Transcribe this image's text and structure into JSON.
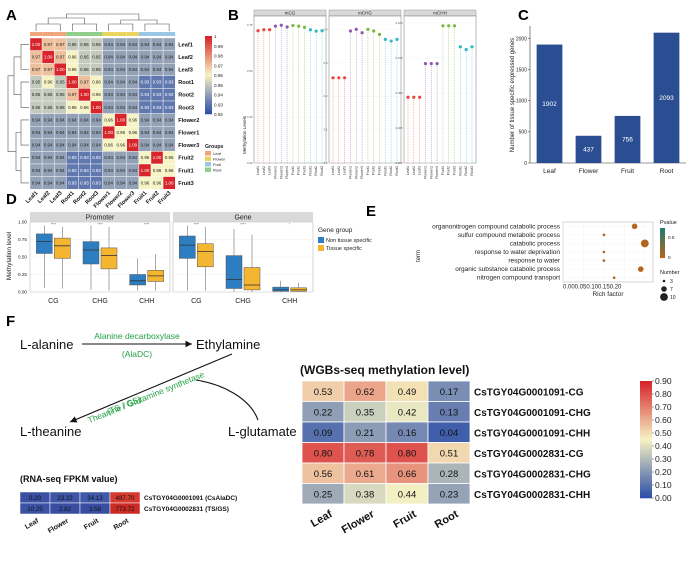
{
  "colors": {
    "heat_low": "#2f4fa8",
    "heat_mid": "#f6f3c4",
    "heat_high": "#d7252b",
    "bar_blue": "#2b4e93",
    "box_blue": "#2d7ec1",
    "box_orange": "#f4b530",
    "strip_grey": "#d9d9d9",
    "mcg": "#e8453c",
    "mchg": "#9b59b6",
    "mchh": "#2eb8c8",
    "green_text": "#22a044"
  },
  "panels": {
    "A": "A",
    "B": "B",
    "C": "C",
    "D": "D",
    "E": "E",
    "F": "F"
  },
  "chart_data": [
    {
      "id": "A",
      "type": "heatmap",
      "title": "",
      "rows": [
        "Leaf1",
        "Leaf2",
        "Leaf3",
        "Root1",
        "Root2",
        "Root3",
        "Flower2",
        "Flower1",
        "Flower3",
        "Fruit2",
        "Fruit1",
        "Fruit3"
      ],
      "cols": [
        "Leaf1",
        "Leaf2",
        "Leaf3",
        "Root1",
        "Root2",
        "Root3",
        "Flower1",
        "Flower2",
        "Flower3",
        "Fruit1",
        "Fruit2",
        "Fruit3"
      ],
      "col_groups": [
        "Leaf",
        "Leaf",
        "Leaf",
        "Root",
        "Root",
        "Root",
        "Flower",
        "Flower",
        "Flower",
        "Fruit",
        "Fruit",
        "Fruit"
      ],
      "values": [
        [
          1.0,
          0.97,
          0.97,
          0.95,
          0.95,
          0.95,
          0.94,
          0.94,
          0.94,
          0.94,
          0.94,
          0.94
        ],
        [
          0.97,
          1.0,
          0.97,
          0.96,
          0.95,
          0.95,
          0.94,
          0.94,
          0.94,
          0.94,
          0.94,
          0.94
        ],
        [
          0.97,
          0.97,
          1.0,
          0.96,
          0.95,
          0.95,
          0.94,
          0.94,
          0.94,
          0.94,
          0.94,
          0.94
        ],
        [
          0.95,
          0.96,
          0.95,
          1.0,
          0.97,
          0.96,
          0.94,
          0.94,
          0.94,
          0.93,
          0.93,
          0.93
        ],
        [
          0.95,
          0.95,
          0.95,
          0.97,
          1.0,
          0.96,
          0.94,
          0.94,
          0.94,
          0.93,
          0.93,
          0.93
        ],
        [
          0.95,
          0.95,
          0.95,
          0.96,
          0.96,
          1.0,
          0.94,
          0.94,
          0.94,
          0.93,
          0.93,
          0.93
        ],
        [
          0.94,
          0.94,
          0.94,
          0.94,
          0.94,
          0.94,
          0.96,
          1.0,
          0.96,
          0.94,
          0.94,
          0.94
        ],
        [
          0.94,
          0.94,
          0.94,
          0.94,
          0.94,
          0.94,
          1.0,
          0.96,
          0.96,
          0.94,
          0.94,
          0.94
        ],
        [
          0.94,
          0.94,
          0.94,
          0.94,
          0.94,
          0.94,
          0.96,
          0.96,
          1.0,
          0.94,
          0.94,
          0.94
        ],
        [
          0.94,
          0.94,
          0.94,
          0.93,
          0.93,
          0.93,
          0.94,
          0.94,
          0.94,
          0.96,
          1.0,
          0.96
        ],
        [
          0.94,
          0.94,
          0.94,
          0.93,
          0.93,
          0.93,
          0.94,
          0.94,
          0.94,
          1.0,
          0.96,
          0.96
        ],
        [
          0.94,
          0.94,
          0.94,
          0.93,
          0.93,
          0.93,
          0.94,
          0.94,
          0.94,
          0.96,
          0.96,
          1.0
        ]
      ],
      "colorbar_ticks": [
        "1",
        "0.99",
        "0.98",
        "0.97",
        "0.96",
        "0.95",
        "0.94",
        "0.93",
        "0.92"
      ],
      "colorbar_range": [
        0.92,
        1.0
      ],
      "legend_title": "Groups",
      "legend_items": [
        "Leaf",
        "Flower",
        "Fruit",
        "Root"
      ],
      "group_colors": {
        "Leaf": "#f0a57c",
        "Flower": "#e9d45d",
        "Fruit": "#9bc7e6",
        "Root": "#8fcf8a"
      }
    },
    {
      "id": "B",
      "type": "scatter",
      "ylabel": "Methylation Levels",
      "facets": [
        "mCG",
        "mCHG",
        "mCHH"
      ],
      "samples": [
        "Leaf1",
        "Leaf2",
        "Leaf3",
        "Flower1",
        "Flower2",
        "Flower3",
        "Fruit1",
        "Fruit2",
        "Fruit3",
        "Root1",
        "Root2",
        "Root3"
      ],
      "series": [
        {
          "name": "mCG",
          "values": [
            0.72,
            0.725,
            0.725,
            0.745,
            0.75,
            0.74,
            0.748,
            0.745,
            0.738,
            0.725,
            0.718,
            0.72
          ],
          "ylim": [
            0,
            0.8
          ],
          "yticks": [
            "0.00",
            "0.25",
            "0.50",
            "0.75"
          ]
        },
        {
          "name": "mCHG",
          "values": [
            0.255,
            0.255,
            0.255,
            0.395,
            0.4,
            0.39,
            0.4,
            0.395,
            0.385,
            0.37,
            0.365,
            0.37
          ],
          "ylim": [
            0,
            0.44
          ],
          "yticks": [
            "0.0",
            "0.1",
            "0.2",
            "0.3",
            "0.4"
          ]
        },
        {
          "name": "mCHH",
          "values": [
            0.047,
            0.047,
            0.047,
            0.071,
            0.071,
            0.071,
            0.098,
            0.098,
            0.098,
            0.083,
            0.081,
            0.083
          ],
          "ylim": [
            0,
            0.105
          ],
          "yticks": [
            "0.000",
            "0.025",
            "0.050",
            "0.075",
            "0.100"
          ]
        }
      ],
      "point_colors": [
        "#e8453c",
        "#e8453c",
        "#e8453c",
        "#8e5bb0",
        "#8e5bb0",
        "#8e5bb0",
        "#7cb83d",
        "#7cb83d",
        "#7cb83d",
        "#2eb8c8",
        "#2eb8c8",
        "#2eb8c8"
      ]
    },
    {
      "id": "C",
      "type": "bar",
      "categories": [
        "Leaf",
        "Flower",
        "Fruit",
        "Root"
      ],
      "values": [
        1902,
        437,
        756,
        2093
      ],
      "data_labels": [
        "1902",
        "437",
        "756",
        "2093"
      ],
      "ylabel": "Number of tissue  specific expressed genes",
      "ylim": [
        0,
        2200
      ],
      "yticks": [
        0,
        500,
        1000,
        1500,
        2000
      ]
    },
    {
      "id": "D",
      "type": "box",
      "facets": [
        "Promoter",
        "Gene"
      ],
      "categories": [
        "CG",
        "CHG",
        "CHH"
      ],
      "ylabel": "Methylation level",
      "ylim": [
        0,
        1.0
      ],
      "yticks": [
        "0.00",
        "0.25",
        "0.50",
        "0.75",
        "1.00"
      ],
      "legend_title": "Gene group",
      "legend_items": [
        "Non tissue specific",
        "Tissue specific"
      ],
      "significance": [
        "****",
        "****",
        "****",
        "****",
        "****",
        "*"
      ],
      "boxes": [
        {
          "facet": "Promoter",
          "category": "CG",
          "group": "Non tissue specific",
          "min": 0.06,
          "q1": 0.55,
          "median": 0.72,
          "q3": 0.83,
          "max": 0.95
        },
        {
          "facet": "Promoter",
          "category": "CG",
          "group": "Tissue specific",
          "min": 0.05,
          "q1": 0.48,
          "median": 0.66,
          "q3": 0.77,
          "max": 0.93
        },
        {
          "facet": "Promoter",
          "category": "CHG",
          "group": "Non tissue specific",
          "min": 0.03,
          "q1": 0.4,
          "median": 0.6,
          "q3": 0.72,
          "max": 0.95
        },
        {
          "facet": "Promoter",
          "category": "CHG",
          "group": "Tissue specific",
          "min": 0.02,
          "q1": 0.33,
          "median": 0.52,
          "q3": 0.63,
          "max": 0.93
        },
        {
          "facet": "Promoter",
          "category": "CHH",
          "group": "Non tissue specific",
          "min": 0.02,
          "q1": 0.1,
          "median": 0.16,
          "q3": 0.25,
          "max": 0.48
        },
        {
          "facet": "Promoter",
          "category": "CHH",
          "group": "Tissue specific",
          "min": 0.02,
          "q1": 0.15,
          "median": 0.23,
          "q3": 0.31,
          "max": 0.54
        },
        {
          "facet": "Gene",
          "category": "CG",
          "group": "Non tissue specific",
          "min": 0.02,
          "q1": 0.48,
          "median": 0.67,
          "q3": 0.8,
          "max": 0.95
        },
        {
          "facet": "Gene",
          "category": "CG",
          "group": "Tissue specific",
          "min": 0.02,
          "q1": 0.36,
          "median": 0.58,
          "q3": 0.69,
          "max": 0.93
        },
        {
          "facet": "Gene",
          "category": "CHG",
          "group": "Non tissue specific",
          "min": 0.0,
          "q1": 0.05,
          "median": 0.18,
          "q3": 0.52,
          "max": 0.9
        },
        {
          "facet": "Gene",
          "category": "CHG",
          "group": "Tissue specific",
          "min": 0.0,
          "q1": 0.03,
          "median": 0.1,
          "q3": 0.35,
          "max": 0.82
        },
        {
          "facet": "Gene",
          "category": "CHH",
          "group": "Non tissue specific",
          "min": 0.0,
          "q1": 0.01,
          "median": 0.03,
          "q3": 0.07,
          "max": 0.16
        },
        {
          "facet": "Gene",
          "category": "CHH",
          "group": "Tissue specific",
          "min": 0.0,
          "q1": 0.01,
          "median": 0.03,
          "q3": 0.06,
          "max": 0.13
        }
      ]
    },
    {
      "id": "E",
      "type": "scatter",
      "ylabel": "term",
      "xlabel": "Rich factor",
      "xlim": [
        0.0,
        0.22
      ],
      "xticks": [
        "0.00",
        "0.05",
        "0.10",
        "0.15",
        "0.20"
      ],
      "terms": [
        "organonitrogen compound catabolic process",
        "sulfur compound metabolic process",
        "catabolic process",
        "response to water deprivation",
        "response to water",
        "organic substance catabolic process",
        "nitrogen compound transport"
      ],
      "rich_factor": [
        0.175,
        0.1,
        0.2,
        0.1,
        0.1,
        0.19,
        0.125
      ],
      "number": [
        7,
        3,
        10,
        3,
        3,
        7,
        3
      ],
      "pvalue": [
        0.9,
        0.9,
        0.95,
        0.9,
        0.9,
        0.9,
        0.9
      ],
      "legend_pvalue_title": "Pvalue",
      "legend_pvalue_ticks": [
        "0.5",
        "0"
      ],
      "legend_number_title": "Number",
      "legend_number_items": [
        "3",
        "7",
        "10"
      ]
    },
    {
      "id": "F-pathway",
      "type": "diagram",
      "nodes": [
        "L-alanine",
        "Ethylamine",
        "L-theanine",
        "L-glutamate"
      ],
      "enzyme1": "Alanine decarboxylase",
      "enzyme1_abbr": "(AlaDC)",
      "enzyme2": "Theanine / Glutamine  synthetase",
      "enzyme2_abbr": "(TS / GS)"
    },
    {
      "id": "F-rnaseq",
      "type": "heatmap",
      "title": "(RNA-seq FPKM value)",
      "cols": [
        "Leaf",
        "Flower",
        "Fruit",
        "Root"
      ],
      "rows": [
        "CsTGY04G0001091 (CsAlaDC)",
        "CsTGY04G0002831 (TS/GS)"
      ],
      "values": [
        [
          "0.20",
          "23.22",
          "34.13",
          "487.70"
        ],
        [
          "10.25",
          "2.82",
          "3.58",
          "773.72"
        ]
      ],
      "cell_colors": [
        [
          "#3b4fa3",
          "#3f55a6",
          "#4058a8",
          "#d63a2f"
        ],
        [
          "#3c52a4",
          "#394ea2",
          "#394ea2",
          "#cc2a25"
        ]
      ]
    },
    {
      "id": "F-wgbs",
      "type": "heatmap",
      "title": "(WGBs-seq  methylation level)",
      "cols": [
        "Leaf",
        "Flower",
        "Fruit",
        "Root"
      ],
      "rows": [
        "CsTGY04G0001091-CG",
        "CsTGY04G0001091-CHG",
        "CsTGY04G0001091-CHH",
        "CsTGY04G0002831-CG",
        "CsTGY04G0002831-CHG",
        "CsTGY04G0002831-CHH"
      ],
      "values": [
        [
          0.53,
          0.62,
          0.49,
          0.17
        ],
        [
          0.22,
          0.35,
          0.42,
          0.13
        ],
        [
          0.09,
          0.21,
          0.16,
          0.04
        ],
        [
          0.8,
          0.78,
          0.8,
          0.51
        ],
        [
          0.56,
          0.61,
          0.66,
          0.28
        ],
        [
          0.25,
          0.38,
          0.44,
          0.23
        ]
      ],
      "labels": [
        [
          "0.53",
          "0.62",
          "0.49",
          "0.17"
        ],
        [
          "0.22",
          "0.35",
          "0.42",
          "0.13"
        ],
        [
          "0.09",
          "0.21",
          "0.16",
          "0.04"
        ],
        [
          "0.80",
          "0.78",
          "0.80",
          "0.51"
        ],
        [
          "0.56",
          "0.61",
          "0.66",
          "0.28"
        ],
        [
          "0.25",
          "0.38",
          "0.44",
          "0.23"
        ]
      ],
      "colorbar_ticks": [
        "0.90",
        "0.80",
        "0.70",
        "0.60",
        "0.50",
        "0.40",
        "0.30",
        "0.20",
        "0.10",
        "0.00"
      ],
      "colorbar_range": [
        0.0,
        0.9
      ]
    }
  ]
}
